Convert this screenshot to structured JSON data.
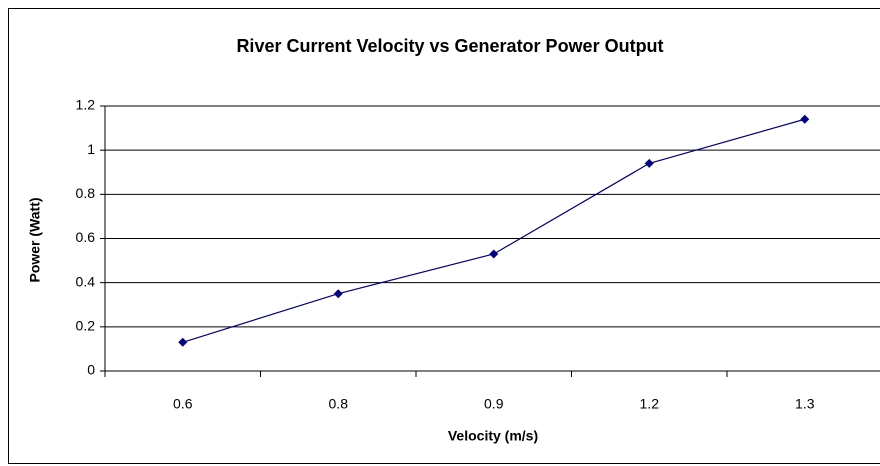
{
  "chart_data": {
    "type": "line",
    "title": "River Current Velocity vs Generator Power Output",
    "x_label": "Velocity (m/s)",
    "y_label": "Power (Watt)",
    "categories": [
      "0.6",
      "0.8",
      "0.9",
      "1.2",
      "1.3"
    ],
    "series": [
      {
        "name": "Power",
        "color": "#000080",
        "values": [
          0.13,
          0.35,
          0.53,
          0.94,
          1.14
        ]
      }
    ],
    "ylim": [
      0,
      1.2
    ],
    "yticks": [
      0,
      0.2,
      0.4,
      0.6,
      0.8,
      1,
      1.2
    ],
    "grid": true
  }
}
